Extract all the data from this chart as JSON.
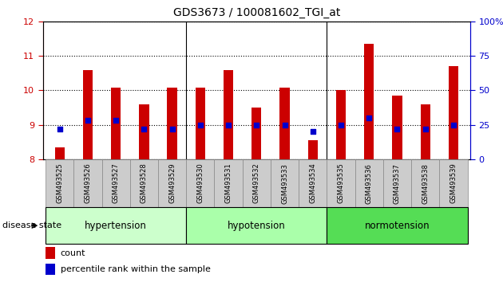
{
  "title": "GDS3673 / 100081602_TGI_at",
  "samples": [
    "GSM493525",
    "GSM493526",
    "GSM493527",
    "GSM493528",
    "GSM493529",
    "GSM493530",
    "GSM493531",
    "GSM493532",
    "GSM493533",
    "GSM493534",
    "GSM493535",
    "GSM493536",
    "GSM493537",
    "GSM493538",
    "GSM493539"
  ],
  "counts": [
    8.35,
    10.58,
    10.07,
    9.6,
    10.07,
    10.07,
    10.58,
    9.5,
    10.07,
    8.55,
    10.0,
    11.35,
    9.85,
    9.6,
    10.7
  ],
  "percentiles": [
    22,
    28,
    28,
    22,
    22,
    25,
    25,
    25,
    25,
    20,
    25,
    30,
    22,
    22,
    25
  ],
  "group_defs": [
    {
      "label": "hypertension",
      "start": 0,
      "end": 4,
      "color": "#ccffcc"
    },
    {
      "label": "hypotension",
      "start": 5,
      "end": 9,
      "color": "#aaffaa"
    },
    {
      "label": "normotension",
      "start": 10,
      "end": 14,
      "color": "#55dd55"
    }
  ],
  "ylim_left": [
    8,
    12
  ],
  "ylim_right": [
    0,
    100
  ],
  "yticks_left": [
    8,
    9,
    10,
    11,
    12
  ],
  "yticks_right": [
    0,
    25,
    50,
    75,
    100
  ],
  "bar_color": "#cc0000",
  "dot_color": "#0000cc",
  "bar_width": 0.35,
  "tick_color_left": "#cc0000",
  "tick_color_right": "#0000cc",
  "legend_count_label": "count",
  "legend_percentile_label": "percentile rank within the sample",
  "disease_state_label": "disease state",
  "xtick_bg_color": "#cccccc",
  "separator_color": "black",
  "grid_color": "black"
}
